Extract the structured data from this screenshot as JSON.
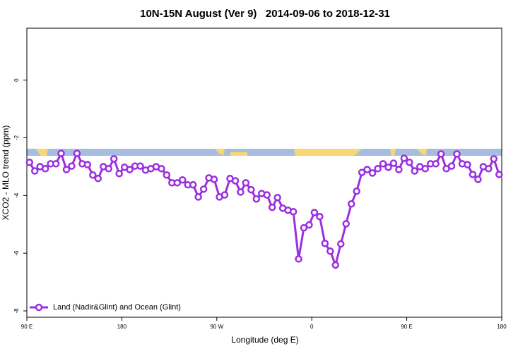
{
  "chart_data": {
    "type": "line",
    "title": "10N-15N August (Ver 9)   2014-09-06 to 2018-12-31",
    "x_label": "Longitude (deg E)",
    "y_label": "XCO2 - MLO trend (ppm)",
    "xlim": [
      90,
      540
    ],
    "ylim": [
      -8.22,
      1.8
    ],
    "xticks": [
      {
        "value": 90,
        "label": "90 E"
      },
      180,
      {
        "value": 270,
        "label": "90 W"
      },
      {
        "value": 360,
        "label": "0"
      },
      {
        "value": 450,
        "label": "90 E"
      },
      {
        "value": 540,
        "label": "180"
      }
    ],
    "yticks": [
      -8,
      -6,
      -4,
      -2,
      0
    ],
    "grid": false,
    "legend_position": "bottom-left",
    "x": [
      92.5,
      97.5,
      102.5,
      107.5,
      112.5,
      117.5,
      122.5,
      127.5,
      132.5,
      137.5,
      142.5,
      147.5,
      152.5,
      157.5,
      162.5,
      167.5,
      172.5,
      177.5,
      182.5,
      187.5,
      192.5,
      197.5,
      202.5,
      207.5,
      212.5,
      217.5,
      222.5,
      227.5,
      232.5,
      237.5,
      242.5,
      247.5,
      252.5,
      257.5,
      262.5,
      267.5,
      272.5,
      277.5,
      282.5,
      287.5,
      292.5,
      297.5,
      302.5,
      307.5,
      312.5,
      317.5,
      322.5,
      327.5,
      332.5,
      337.5,
      342.5,
      347.5,
      352.5,
      357.5,
      362.5,
      367.5,
      372.5,
      377.5,
      382.5,
      387.5,
      392.5,
      397.5,
      402.5,
      407.5,
      412.5,
      417.5,
      422.5,
      427.5,
      432.5,
      437.5,
      442.5,
      447.5,
      452.5,
      457.5,
      462.5,
      467.5,
      472.5,
      477.5,
      482.5,
      487.5,
      492.5,
      497.5,
      502.5,
      507.5,
      512.5,
      517.5,
      522.5,
      527.5,
      532.5,
      537.5
    ],
    "series": [
      {
        "name": "Land (Nadir&Glint) and Ocean (Glint)",
        "color": "#9b2fe0",
        "values": [
          -2.85,
          -3.15,
          -3.0,
          -3.07,
          -2.9,
          -2.9,
          -2.54,
          -3.1,
          -2.98,
          -2.54,
          -2.9,
          -2.93,
          -3.29,
          -3.41,
          -3.0,
          -3.07,
          -2.73,
          -3.24,
          -3.02,
          -3.1,
          -2.98,
          -2.98,
          -3.12,
          -3.07,
          -3.0,
          -3.07,
          -3.29,
          -3.56,
          -3.56,
          -3.46,
          -3.63,
          -3.63,
          -4.05,
          -3.78,
          -3.39,
          -3.44,
          -4.05,
          -3.98,
          -3.41,
          -3.49,
          -3.88,
          -3.56,
          -3.8,
          -4.12,
          -3.93,
          -3.98,
          -4.41,
          -4.07,
          -4.44,
          -4.51,
          -4.56,
          -6.2,
          -5.12,
          -5.02,
          -4.59,
          -4.73,
          -5.66,
          -5.93,
          -6.41,
          -5.68,
          -4.98,
          -4.29,
          -3.85,
          -3.2,
          -3.1,
          -3.22,
          -3.07,
          -2.9,
          -3.02,
          -2.88,
          -3.1,
          -2.71,
          -2.85,
          -3.15,
          -3.0,
          -3.07,
          -2.9,
          -2.9,
          -2.56,
          -3.07,
          -2.98,
          -2.56,
          -2.9,
          -2.93,
          -3.27,
          -3.44,
          -3.0,
          -3.07,
          -2.73,
          -3.27
        ]
      }
    ]
  }
}
